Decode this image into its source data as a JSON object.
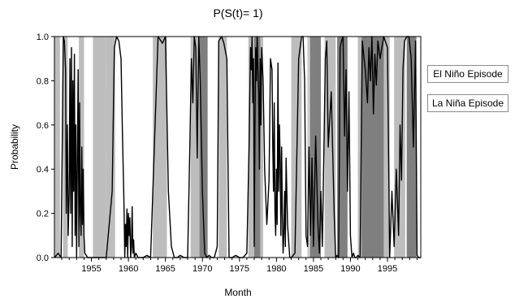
{
  "chart_data": {
    "type": "line",
    "title": "P(S(t)= 1)",
    "xlabel": "Month",
    "ylabel": "Probability",
    "xlim": [
      1950.0,
      1999.5
    ],
    "ylim": [
      0,
      1
    ],
    "x_ticks": [
      1955,
      1960,
      1965,
      1970,
      1975,
      1980,
      1985,
      1990,
      1995
    ],
    "y_ticks": [
      0.0,
      0.2,
      0.4,
      0.6,
      0.8,
      1.0
    ],
    "y_tick_labels": [
      "0.0",
      "0.2",
      "0.4",
      "0.6",
      "0.8",
      "1.0"
    ],
    "legend_position": "right",
    "legend": [
      "El Niño Episode",
      "La Niña Episode"
    ],
    "colors": {
      "el_nino": "#bdbdbd",
      "la_nina": "#7f7f7f",
      "line": "#000000"
    },
    "el_nino_episodes": [
      [
        1950.0,
        1950.75
      ],
      [
        1951.15,
        1951.8
      ],
      [
        1953.3,
        1954.0
      ],
      [
        1955.2,
        1957.0
      ],
      [
        1957.0,
        1958.2
      ],
      [
        1963.3,
        1965.2
      ],
      [
        1968.4,
        1969.6
      ],
      [
        1972.2,
        1973.3
      ],
      [
        1976.2,
        1978.2
      ],
      [
        1982.0,
        1983.4
      ],
      [
        1984.2,
        1984.4
      ],
      [
        1986.5,
        1988.0
      ],
      [
        1991.0,
        1991.5
      ],
      [
        1994.5,
        1995.3
      ],
      [
        1995.9,
        1997.4
      ]
    ],
    "la_nina_episodes": [
      [
        1969.6,
        1970.7
      ],
      [
        1977.0,
        1977.8
      ],
      [
        1984.5,
        1986.0
      ],
      [
        1988.2,
        1989.6
      ],
      [
        1991.5,
        1994.5
      ],
      [
        1997.6,
        1998.9
      ]
    ],
    "series": [
      {
        "x": [
          1950.0,
          1950.5,
          1950.9,
          1951.05,
          1951.2,
          1951.35,
          1951.5,
          1951.6,
          1951.75,
          1951.85,
          1952.0,
          1952.1,
          1952.2,
          1952.3,
          1952.4,
          1952.5,
          1952.6,
          1952.7,
          1952.8,
          1952.9,
          1953.0,
          1953.1,
          1953.2,
          1953.3,
          1953.4,
          1953.5,
          1953.6,
          1953.7,
          1953.8,
          1953.9,
          1954.0,
          1954.1,
          1954.3,
          1954.5,
          1955.0,
          1956.0,
          1957.0,
          1957.8,
          1958.1,
          1958.4,
          1958.7,
          1959.0,
          1959.2,
          1959.4,
          1959.5,
          1959.6,
          1959.7,
          1959.8,
          1959.9,
          1960.0,
          1960.1,
          1960.2,
          1960.3,
          1960.4,
          1960.5,
          1960.6,
          1960.7,
          1960.8,
          1961.0,
          1961.3,
          1961.6,
          1962.0,
          1962.5,
          1963.0,
          1963.5,
          1964.0,
          1964.6,
          1965.0,
          1965.4,
          1965.8,
          1966.2,
          1966.6,
          1967.0,
          1967.5,
          1968.0,
          1968.3,
          1968.5,
          1968.7,
          1968.9,
          1969.1,
          1969.3,
          1969.5,
          1969.7,
          1970.0,
          1970.3,
          1970.6,
          1970.9,
          1971.2,
          1971.6,
          1972.0,
          1972.2,
          1972.6,
          1972.9,
          1973.3,
          1973.6,
          1974.0,
          1974.5,
          1975.0,
          1975.5,
          1976.0,
          1976.3,
          1976.5,
          1976.6,
          1976.7,
          1976.8,
          1976.9,
          1977.0,
          1977.1,
          1977.2,
          1977.3,
          1977.4,
          1977.5,
          1977.6,
          1977.7,
          1977.8,
          1977.9,
          1978.0,
          1978.2,
          1978.4,
          1978.7,
          1979.0,
          1979.2,
          1979.4,
          1979.5,
          1979.6,
          1979.7,
          1979.8,
          1979.9,
          1980.0,
          1980.1,
          1980.2,
          1980.3,
          1980.4,
          1980.5,
          1980.6,
          1980.7,
          1980.8,
          1980.9,
          1981.0,
          1981.1,
          1981.2,
          1981.3,
          1981.5,
          1981.8,
          1982.0,
          1982.5,
          1983.0,
          1983.4,
          1983.6,
          1983.8,
          1984.0,
          1984.2,
          1984.4,
          1984.6,
          1984.8,
          1985.0,
          1985.3,
          1985.6,
          1985.8,
          1986.0,
          1986.2,
          1986.4,
          1986.6,
          1986.8,
          1987.0,
          1987.4,
          1987.8,
          1988.0,
          1988.2,
          1988.4,
          1988.6,
          1988.8,
          1989.0,
          1989.2,
          1989.4,
          1989.6,
          1989.8,
          1990.0,
          1990.2,
          1990.4,
          1990.6,
          1990.8,
          1991.0,
          1991.3,
          1991.6,
          1992.0,
          1992.3,
          1992.5,
          1992.7,
          1992.9,
          1993.1,
          1993.3,
          1993.5,
          1993.7,
          1994.0,
          1994.5,
          1995.0,
          1995.3,
          1995.6,
          1995.9,
          1996.2,
          1996.5,
          1996.7,
          1996.9,
          1997.1,
          1997.3,
          1997.6,
          1997.9,
          1998.2,
          1998.5,
          1998.8,
          1999.0,
          1999.2,
          1999.5
        ],
        "y": [
          0.0,
          0.02,
          0.0,
          0.5,
          1.0,
          0.98,
          0.85,
          0.2,
          0.6,
          0.1,
          0.3,
          0.9,
          0.2,
          0.95,
          0.05,
          0.8,
          0.3,
          0.92,
          0.1,
          0.6,
          0.0,
          0.4,
          0.85,
          0.05,
          0.7,
          0.2,
          0.1,
          0.5,
          0.15,
          0.4,
          0.1,
          0.02,
          0.01,
          0.0,
          0.0,
          0.0,
          0.0,
          0.3,
          0.95,
          1.0,
          0.98,
          0.9,
          0.55,
          0.25,
          0.0,
          0.15,
          0.05,
          0.22,
          0.0,
          0.2,
          0.1,
          0.18,
          0.0,
          0.05,
          0.23,
          0.02,
          0.08,
          0.0,
          0.02,
          0.0,
          0.0,
          0.0,
          0.01,
          0.0,
          0.5,
          1.0,
          0.97,
          1.0,
          0.3,
          0.05,
          0.0,
          0.0,
          0.01,
          0.0,
          0.0,
          0.5,
          0.9,
          0.7,
          1.0,
          0.95,
          0.45,
          1.0,
          0.8,
          0.3,
          0.02,
          0.0,
          0.01,
          0.0,
          0.0,
          0.05,
          0.98,
          1.0,
          0.97,
          0.9,
          0.0,
          0.0,
          0.01,
          0.0,
          0.0,
          0.02,
          0.5,
          0.95,
          0.85,
          1.0,
          0.7,
          0.9,
          0.05,
          0.6,
          0.95,
          0.8,
          1.0,
          0.85,
          0.75,
          0.4,
          0.9,
          0.6,
          0.95,
          0.8,
          0.4,
          0.15,
          0.35,
          0.9,
          0.85,
          0.5,
          0.3,
          0.7,
          0.2,
          0.1,
          0.4,
          0.15,
          0.88,
          0.3,
          0.6,
          0.45,
          0.1,
          0.5,
          0.2,
          0.02,
          0.1,
          0.3,
          0.05,
          0.45,
          0.15,
          0.0,
          0.0,
          0.02,
          0.9,
          1.0,
          1.0,
          0.8,
          0.1,
          0.05,
          0.5,
          0.1,
          0.45,
          0.05,
          0.55,
          0.15,
          0.02,
          0.3,
          0.05,
          0.45,
          0.9,
          0.98,
          0.5,
          0.75,
          0.2,
          0.0,
          0.01,
          0.0,
          0.95,
          0.98,
          1.0,
          0.55,
          0.85,
          0.3,
          0.75,
          0.1,
          0.0,
          0.02,
          0.0,
          0.0,
          0.01,
          0.0,
          0.98,
          0.85,
          0.7,
          0.95,
          0.8,
          1.0,
          0.65,
          0.92,
          0.78,
          0.98,
          0.9,
          1.0,
          0.95,
          0.0,
          0.3,
          0.05,
          0.4,
          0.1,
          0.6,
          0.35,
          0.85,
          0.98,
          1.0,
          1.0,
          0.9,
          0.5,
          0.98,
          0.01,
          0.0,
          0.0
        ]
      }
    ]
  }
}
